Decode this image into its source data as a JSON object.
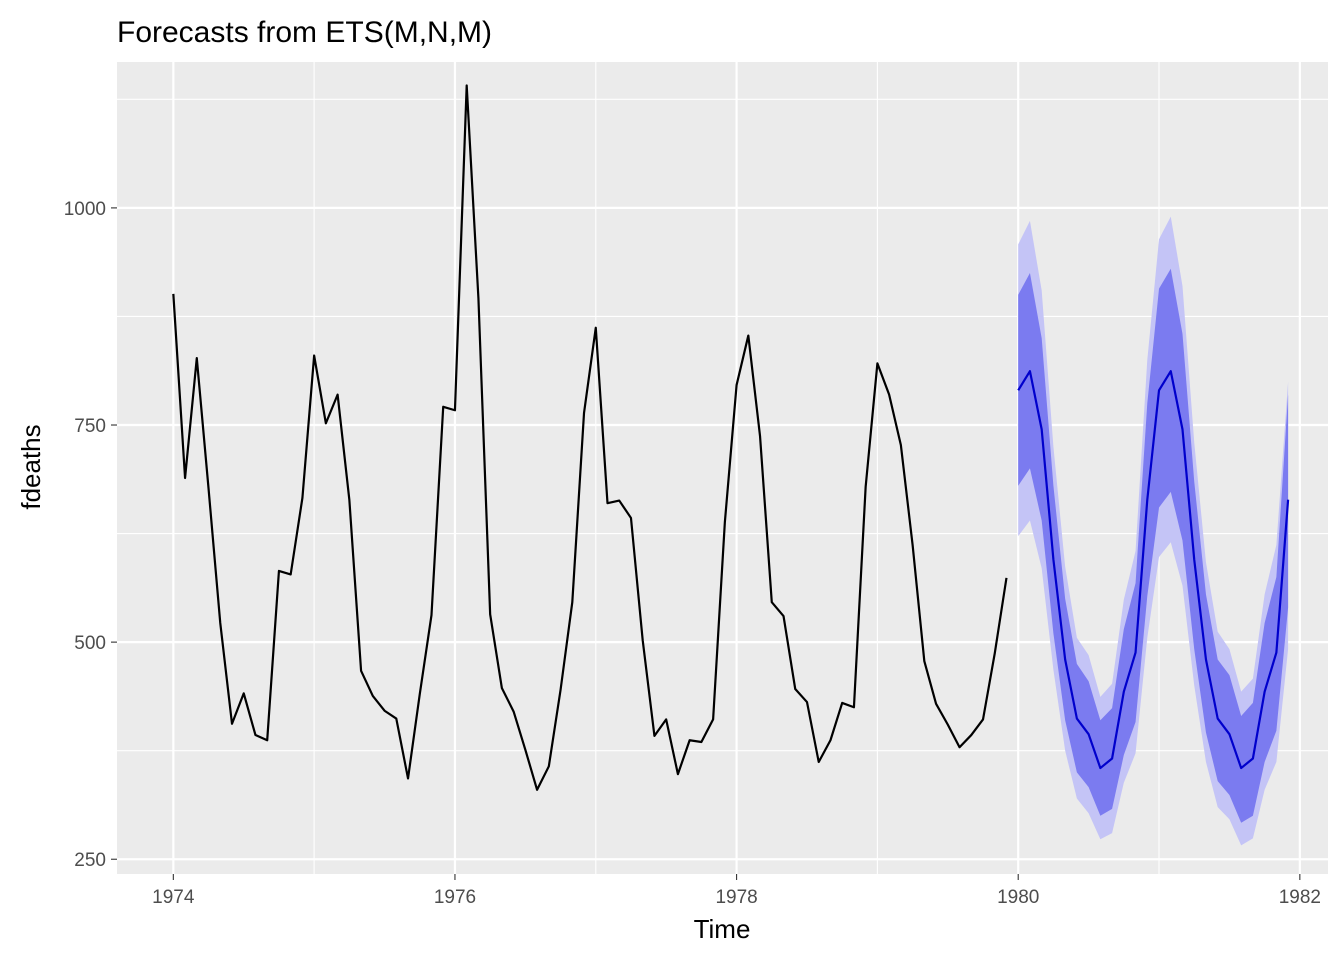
{
  "chart_data": {
    "type": "line",
    "title": "Forecasts from ETS(M,N,M)",
    "xlabel": "Time",
    "ylabel": "fdeaths",
    "xlim": [
      1973.6,
      1982.2
    ],
    "ylim": [
      233,
      1168
    ],
    "x_ticks": [
      1974,
      1976,
      1978,
      1980,
      1982
    ],
    "x_tick_labels": [
      "1974",
      "1976",
      "1978",
      "1980",
      "1982"
    ],
    "y_ticks": [
      250,
      500,
      750,
      1000
    ],
    "y_tick_labels": [
      "250",
      "500",
      "750",
      "1000"
    ],
    "grid": true,
    "legend": "none",
    "colors": {
      "panel": "#ebebeb",
      "grid": "#ffffff",
      "history_line": "#000000",
      "forecast_line": "#0000cc",
      "pi80": "#7b7bf0",
      "pi95": "#c4c4f6"
    },
    "history": {
      "start": 1974,
      "frequency": 12,
      "values": [
        901,
        689,
        827,
        677,
        522,
        406,
        441,
        393,
        387,
        582,
        578,
        666,
        830,
        752,
        785,
        664,
        467,
        438,
        421,
        412,
        343,
        440,
        531,
        771,
        767,
        1141,
        896,
        532,
        447,
        420,
        376,
        330,
        357,
        445,
        546,
        764,
        862,
        660,
        663,
        643,
        502,
        392,
        411,
        348,
        387,
        385,
        411,
        638,
        796,
        853,
        737,
        546,
        530,
        446,
        431,
        362,
        387,
        430,
        425,
        679,
        821,
        785,
        727,
        612,
        478,
        429,
        405,
        379,
        393,
        411,
        487,
        574
      ]
    },
    "forecast": {
      "start": 1980,
      "frequency": 12,
      "mean": [
        790,
        812,
        745,
        595,
        480,
        412,
        394,
        355,
        366,
        443,
        488,
        664,
        790,
        812,
        745,
        595,
        480,
        412,
        394,
        355,
        366,
        443,
        488,
        664
      ],
      "lo80": [
        680,
        700,
        640,
        510,
        410,
        350,
        333,
        300,
        308,
        370,
        408,
        553,
        655,
        673,
        617,
        492,
        396,
        340,
        324,
        292,
        300,
        362,
        398,
        540
      ],
      "hi80": [
        900,
        925,
        850,
        680,
        550,
        475,
        455,
        410,
        424,
        515,
        568,
        775,
        907,
        930,
        855,
        685,
        555,
        480,
        462,
        415,
        430,
        522,
        575,
        785
      ],
      "lo95": [
        622,
        640,
        585,
        468,
        375,
        320,
        303,
        273,
        280,
        338,
        372,
        505,
        598,
        615,
        565,
        450,
        362,
        310,
        296,
        266,
        274,
        330,
        362,
        492
      ],
      "hi95": [
        958,
        985,
        905,
        725,
        587,
        505,
        485,
        437,
        452,
        549,
        605,
        825,
        964,
        990,
        910,
        730,
        592,
        512,
        492,
        443,
        458,
        555,
        612,
        800
      ]
    }
  }
}
